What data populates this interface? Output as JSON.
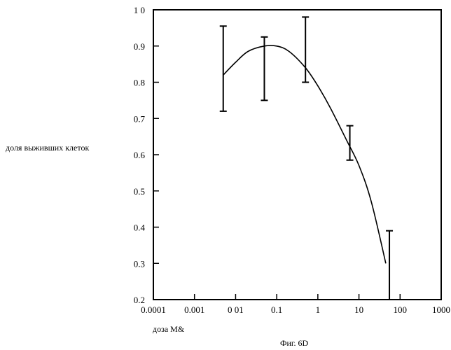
{
  "chart_data": {
    "type": "line",
    "xlabel": "доза M&",
    "ylabel": "доля выживших клеток",
    "caption": "Фиг. 6D",
    "xscale": "log",
    "xlim": [
      0.0001,
      1000
    ],
    "ylim": [
      0.2,
      1.0
    ],
    "xticks": [
      0.0001,
      0.001,
      0.01,
      0.1,
      1,
      10,
      100,
      1000
    ],
    "xtick_labels": [
      "0.0001",
      "0.001",
      "0 01",
      "0.1",
      "1",
      "10",
      "100",
      "1000"
    ],
    "yticks": [
      0.2,
      0.3,
      0.4,
      0.5,
      0.6,
      0.7,
      0.8,
      0.9,
      1.0
    ],
    "ytick_labels": [
      "0.2",
      "0.3",
      "0.4",
      "0.5",
      "0.6",
      "0.7",
      "0.8",
      "0.9",
      "1 0"
    ],
    "grid": false,
    "series": [
      {
        "x": [
          0.005,
          0.05,
          0.5,
          6,
          55
        ],
        "y": [
          0.82,
          0.9,
          0.84,
          0.635,
          0.3
        ],
        "yerr_low": [
          0.72,
          0.75,
          0.8,
          0.585,
          0.2
        ],
        "yerr_high": [
          0.955,
          0.925,
          0.98,
          0.68,
          0.39
        ]
      }
    ],
    "curve": {
      "x": [
        0.005,
        0.01,
        0.02,
        0.05,
        0.1,
        0.2,
        0.5,
        1,
        2,
        5,
        10,
        20,
        45
      ],
      "y": [
        0.82,
        0.855,
        0.885,
        0.9,
        0.9,
        0.885,
        0.84,
        0.79,
        0.73,
        0.64,
        0.57,
        0.47,
        0.3
      ]
    }
  }
}
